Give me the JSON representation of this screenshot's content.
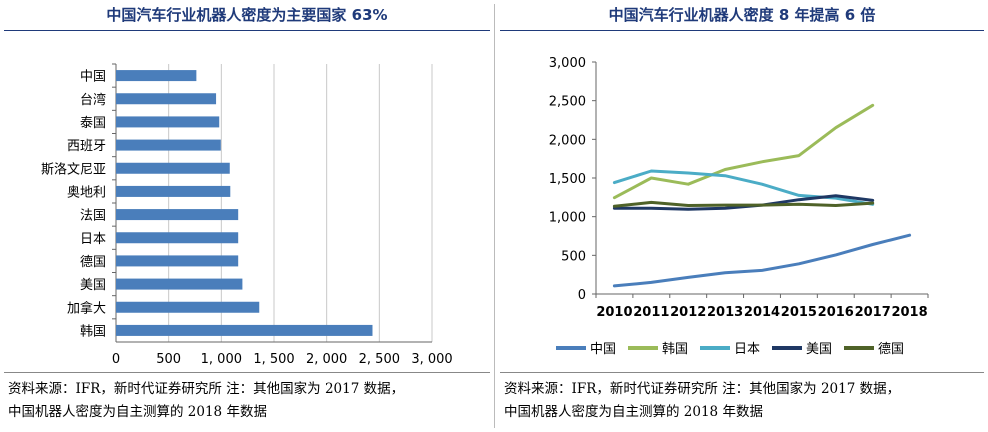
{
  "colors": {
    "title": "#1f3a7a",
    "bar": "#4a7ebb",
    "series": [
      "#4a7ebb",
      "#9bbb59",
      "#4bacc6",
      "#1f3864",
      "#4f6228"
    ]
  },
  "left": {
    "title": "中国汽车行业机器人密度为主要国家 63%",
    "note_line1": "资料来源：IFR，新时代证券研究所   注：其他国家为 2017 数据，",
    "note_line2": "中国机器人密度为自主测算的 2018 年数据"
  },
  "right": {
    "title": "中国汽车行业机器人密度 8 年提高 6 倍",
    "note_line1": "资料来源：IFR，新时代证券研究所   注：其他国家为 2017 数据，",
    "note_line2": "中国机器人密度为自主测算的 2018 年数据"
  },
  "chart_data": [
    {
      "type": "bar",
      "orientation": "horizontal",
      "title": "中国汽车行业机器人密度为主要国家 63%",
      "categories": [
        "中国",
        "台湾",
        "泰国",
        "西班牙",
        "斯洛文尼亚",
        "奥地利",
        "法国",
        "日本",
        "德国",
        "美国",
        "加拿大",
        "韩国"
      ],
      "values": [
        763,
        950,
        980,
        995,
        1080,
        1085,
        1160,
        1160,
        1160,
        1200,
        1360,
        2435
      ],
      "xlim": [
        0,
        3000
      ],
      "ticks": [
        0,
        500,
        1000,
        1500,
        2000,
        2500,
        3000
      ],
      "tick_labels": [
        "0",
        "500",
        "1, 000",
        "1, 500",
        "2, 000",
        "2, 500",
        "3, 000"
      ],
      "xlabel": "",
      "ylabel": ""
    },
    {
      "type": "line",
      "title": "中国汽车行业机器人密度 8 年提高 6 倍",
      "x": [
        "2010",
        "2011",
        "2012",
        "2013",
        "2014",
        "2015",
        "2016",
        "2017",
        "2018"
      ],
      "ylim": [
        0,
        3000
      ],
      "ticks": [
        0,
        500,
        1000,
        1500,
        2000,
        2500,
        3000
      ],
      "tick_labels": [
        "0",
        "500",
        "1,000",
        "1,500",
        "2,000",
        "2,500",
        "3,000"
      ],
      "series": [
        {
          "name": "中国",
          "values": [
            105,
            150,
            215,
            275,
            305,
            390,
            505,
            640,
            760
          ]
        },
        {
          "name": "韩国",
          "values": [
            1245,
            1500,
            1420,
            1610,
            1710,
            1790,
            2150,
            2440,
            null
          ]
        },
        {
          "name": "日本",
          "values": [
            1440,
            1590,
            1565,
            1530,
            1420,
            1275,
            1240,
            1160,
            null
          ]
        },
        {
          "name": "美国",
          "values": [
            1110,
            1110,
            1095,
            1110,
            1150,
            1220,
            1270,
            1210,
            null
          ]
        },
        {
          "name": "德国",
          "values": [
            1135,
            1185,
            1145,
            1150,
            1150,
            1160,
            1145,
            1175,
            null
          ]
        }
      ],
      "xlabel": "",
      "ylabel": "",
      "legend": "bottom"
    }
  ]
}
